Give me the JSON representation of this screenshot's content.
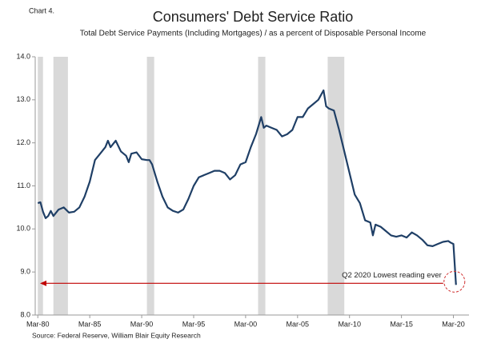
{
  "chart_data": {
    "type": "line",
    "label": "Chart 4.",
    "title": "Consumers' Debt Service Ratio",
    "subtitle": "Total Debt Service Payments (Including Mortgages) / as a percent of Disposable Personal Income",
    "annotation": "Q2 2020 Lowest reading ever",
    "source": "Source: Federal Reserve, William Blair Equity Research",
    "xlim": [
      1979.75,
      2021.5
    ],
    "xticks": [
      {
        "value": 1980,
        "label": "Mar-80"
      },
      {
        "value": 1985,
        "label": "Mar-85"
      },
      {
        "value": 1990,
        "label": "Mar-90"
      },
      {
        "value": 1995,
        "label": "Mar-95"
      },
      {
        "value": 2000,
        "label": "Mar-00"
      },
      {
        "value": 2005,
        "label": "Mar-05"
      },
      {
        "value": 2010,
        "label": "Mar-10"
      },
      {
        "value": 2015,
        "label": "Mar-15"
      },
      {
        "value": 2020,
        "label": "Mar-20"
      }
    ],
    "ylim": [
      8,
      14
    ],
    "yticks": [
      {
        "value": 8,
        "label": "8.0"
      },
      {
        "value": 9,
        "label": "9.0"
      },
      {
        "value": 10,
        "label": "10.0"
      },
      {
        "value": 11,
        "label": "11.0"
      },
      {
        "value": 12,
        "label": "12.0"
      },
      {
        "value": 13,
        "label": "13.0"
      },
      {
        "value": 14,
        "label": "14.0"
      }
    ],
    "recessions": [
      [
        1980.0,
        1980.5
      ],
      [
        1981.5,
        1982.9
      ],
      [
        1990.5,
        1991.2
      ],
      [
        2001.2,
        2001.9
      ],
      [
        2007.9,
        2009.5
      ]
    ],
    "recession_color": "#d9d9d9",
    "x": [
      1980,
      1980.25,
      1980.5,
      1980.75,
      1981,
      1981.25,
      1981.5,
      1982,
      1982.5,
      1983,
      1983.5,
      1984,
      1984.5,
      1985,
      1985.5,
      1986,
      1986.5,
      1986.75,
      1987,
      1987.5,
      1988,
      1988.5,
      1988.75,
      1989,
      1989.5,
      1990,
      1990.5,
      1990.75,
      1991,
      1991.5,
      1992,
      1992.5,
      1993,
      1993.5,
      1994,
      1994.5,
      1995,
      1995.5,
      1996,
      1996.5,
      1997,
      1997.5,
      1998,
      1998.5,
      1999,
      1999.5,
      2000,
      2000.5,
      2001,
      2001.5,
      2001.75,
      2002,
      2002.5,
      2003,
      2003.5,
      2004,
      2004.5,
      2005,
      2005.5,
      2006,
      2006.5,
      2007,
      2007.5,
      2007.75,
      2008,
      2008.5,
      2009,
      2009.5,
      2010,
      2010.5,
      2011,
      2011.5,
      2012,
      2012.25,
      2012.5,
      2013,
      2013.5,
      2014,
      2014.5,
      2015,
      2015.5,
      2016,
      2016.5,
      2017,
      2017.5,
      2018,
      2018.5,
      2019,
      2019.5,
      2019.75,
      2020,
      2020.25
    ],
    "series": [
      {
        "name": "Debt Service Ratio",
        "color": "#1f3f66",
        "values": [
          10.6,
          10.62,
          10.4,
          10.25,
          10.3,
          10.42,
          10.3,
          10.45,
          10.5,
          10.38,
          10.4,
          10.5,
          10.75,
          11.1,
          11.6,
          11.75,
          11.9,
          12.05,
          11.9,
          12.05,
          11.8,
          11.7,
          11.55,
          11.75,
          11.78,
          11.62,
          11.6,
          11.6,
          11.5,
          11.1,
          10.75,
          10.5,
          10.42,
          10.38,
          10.45,
          10.7,
          11.0,
          11.2,
          11.25,
          11.3,
          11.35,
          11.35,
          11.3,
          11.15,
          11.25,
          11.5,
          11.55,
          11.9,
          12.2,
          12.6,
          12.35,
          12.4,
          12.35,
          12.3,
          12.15,
          12.2,
          12.3,
          12.6,
          12.6,
          12.8,
          12.9,
          13.0,
          13.22,
          12.85,
          12.8,
          12.75,
          12.3,
          11.8,
          11.3,
          10.8,
          10.6,
          10.2,
          10.15,
          9.85,
          10.1,
          10.05,
          9.95,
          9.85,
          9.82,
          9.85,
          9.8,
          9.92,
          9.85,
          9.75,
          9.62,
          9.6,
          9.65,
          9.7,
          9.72,
          9.68,
          9.65,
          8.7
        ]
      }
    ]
  }
}
